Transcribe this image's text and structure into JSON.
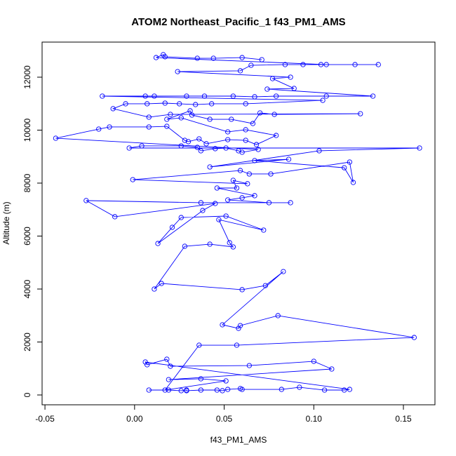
{
  "chart_data": {
    "type": "line",
    "title": "ATOM2 Northeast_Pacific_1 f43_PM1_AMS",
    "xlabel": "f43_PM1_AMS",
    "ylabel": "Altitude (m)",
    "color": "#0000ff",
    "markers": true,
    "xlim": [
      -0.0516,
      0.1676
    ],
    "ylim": [
      -371,
      13325
    ],
    "xticks": [
      -0.05,
      {
        "value": 0,
        "label": "0.00"
      },
      0.05,
      {
        "value": 0.1,
        "label": "0.10"
      },
      0.15
    ],
    "yticks": [
      0,
      2000,
      4000,
      6000,
      8000,
      10000,
      12000
    ],
    "x": [
      0.008,
      0.019,
      0.026,
      0.029,
      0.029,
      0.037,
      0.046,
      0.049,
      0.052,
      0.059,
      0.06,
      0.082,
      0.092,
      0.106,
      0.117,
      0.12,
      0.006,
      0.007,
      0.018,
      0.02,
      0.064,
      0.1,
      0.11,
      0.019,
      0.037,
      0.051,
      0.017,
      0.036,
      0.057,
      0.156,
      0.08,
      0.059,
      0.058,
      0.049,
      0.083,
      0.073,
      0.06,
      0.015,
      0.011,
      0.028,
      0.042,
      0.055,
      0.053,
      0.047,
      0.072,
      0.051,
      0.026,
      0.021,
      0.013,
      0.038,
      0.045,
      -0.011,
      -0.027,
      0.037,
      0.087,
      0.075,
      0.052,
      0.06,
      0.067,
      0.046,
      0.057,
      0.055,
      0.063,
      -0.001,
      0.059,
      0.064,
      0.076,
      0.12,
      0.122,
      0.117,
      0.067,
      0.086,
      0.042,
      0.103,
      0.159,
      -0.003,
      0.004,
      0.026,
      0.035,
      0.037,
      0.045,
      0.051,
      0.058,
      0.06,
      0.069,
      -0.044,
      -0.02,
      -0.014,
      0.008,
      0.018,
      0.028,
      0.03,
      0.036,
      0.04,
      0.052,
      0.062,
      0.068,
      0.079,
      0.062,
      0.052,
      0.026,
      0.018,
      0.031,
      0.032,
      0.042,
      0.054,
      0.066,
      0.07,
      0.078,
      0.126,
      0.02,
      0.008,
      -0.012,
      -0.005,
      0.007,
      0.017,
      0.025,
      0.034,
      0.043,
      0.062,
      0.105,
      -0.018,
      0.006,
      0.011,
      0.029,
      0.039,
      0.055,
      0.067,
      0.079,
      0.107,
      0.133,
      0.074,
      0.089,
      0.077,
      0.087,
      0.024,
      0.059,
      0.065,
      0.084,
      0.094,
      0.104,
      0.136,
      0.123,
      0.107,
      0.012,
      0.016,
      0.017,
      0.035,
      0.044,
      0.06,
      0.071
    ],
    "y": [
      185,
      185,
      160,
      185,
      160,
      185,
      185,
      160,
      210,
      240,
      210,
      210,
      290,
      185,
      185,
      210,
      1245,
      1140,
      1350,
      1085,
      1110,
      1270,
      980,
      580,
      610,
      530,
      185,
      1880,
      1880,
      2170,
      2995,
      2620,
      2515,
      2650,
      4660,
      4130,
      3975,
      4210,
      4000,
      5615,
      5695,
      5590,
      5750,
      6620,
      6225,
      6755,
      6700,
      6330,
      5720,
      6965,
      7230,
      6730,
      7340,
      7260,
      7260,
      7260,
      7365,
      7445,
      7525,
      7815,
      7815,
      8105,
      7975,
      8130,
      8475,
      8345,
      8345,
      8795,
      8025,
      8580,
      8850,
      8900,
      8610,
      9220,
      9325,
      9325,
      9405,
      9405,
      9350,
      9220,
      9300,
      9325,
      9220,
      9165,
      9270,
      9695,
      10040,
      10120,
      10120,
      10145,
      9615,
      9565,
      9670,
      9485,
      9640,
      9615,
      9455,
      9800,
      10015,
      9935,
      10465,
      10410,
      10730,
      10570,
      10410,
      10410,
      10250,
      10650,
      10595,
      10620,
      10595,
      10490,
      10810,
      10995,
      10995,
      11020,
      10995,
      10965,
      10995,
      10995,
      11125,
      11285,
      11285,
      11285,
      11285,
      11285,
      11285,
      11260,
      11285,
      11285,
      11285,
      11550,
      11575,
      11945,
      12000,
      12210,
      12240,
      12450,
      12475,
      12475,
      12475,
      12475,
      12475,
      12475,
      12740,
      12850,
      12770,
      12715,
      12715,
      12740,
      12660
    ]
  }
}
